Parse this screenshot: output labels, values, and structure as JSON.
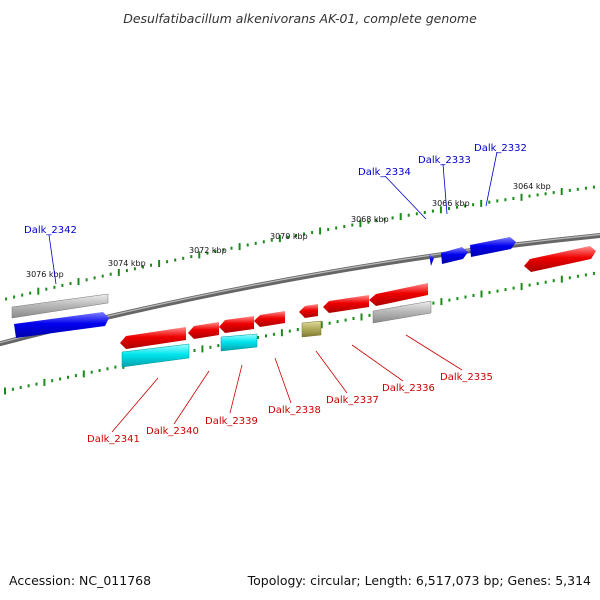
{
  "title": "Desulfatibacillum alkenivorans AK-01, complete genome",
  "footer": {
    "accession": "Accession: NC_011768",
    "summary": "Topology: circular; Length: 6,517,073 bp; Genes: 5,314"
  },
  "scale_labels": [
    {
      "text": "3076 kbp"
    },
    {
      "text": "3074 kbp"
    },
    {
      "text": "3072 kbp"
    },
    {
      "text": "3070 kbp"
    },
    {
      "text": "3068 kbp"
    },
    {
      "text": "3066 kbp"
    },
    {
      "text": "3064 kbp"
    }
  ],
  "gene_labels": [
    {
      "text": "Dalk_2332",
      "strand": "forward",
      "color": "#0000cc"
    },
    {
      "text": "Dalk_2333",
      "strand": "forward",
      "color": "#0000cc"
    },
    {
      "text": "Dalk_2334",
      "strand": "forward",
      "color": "#0000cc"
    },
    {
      "text": "Dalk_2342",
      "strand": "forward",
      "color": "#0000cc"
    },
    {
      "text": "Dalk_2335",
      "strand": "reverse",
      "color": "#cc0000"
    },
    {
      "text": "Dalk_2336",
      "strand": "reverse",
      "color": "#cc0000"
    },
    {
      "text": "Dalk_2337",
      "strand": "reverse",
      "color": "#cc0000"
    },
    {
      "text": "Dalk_2338",
      "strand": "reverse",
      "color": "#cc0000"
    },
    {
      "text": "Dalk_2339",
      "strand": "reverse",
      "color": "#cc0000"
    },
    {
      "text": "Dalk_2340",
      "strand": "reverse",
      "color": "#cc0000"
    },
    {
      "text": "Dalk_2341",
      "strand": "reverse",
      "color": "#cc0000"
    }
  ],
  "colors": {
    "forward_cds": "#0000ee",
    "reverse_cds": "#ee0000",
    "rna": "#00e5ee",
    "other": "#bbbbbb",
    "misc": "#b5b060",
    "backbone": "#888888",
    "ticks": "#1a8a1a"
  }
}
